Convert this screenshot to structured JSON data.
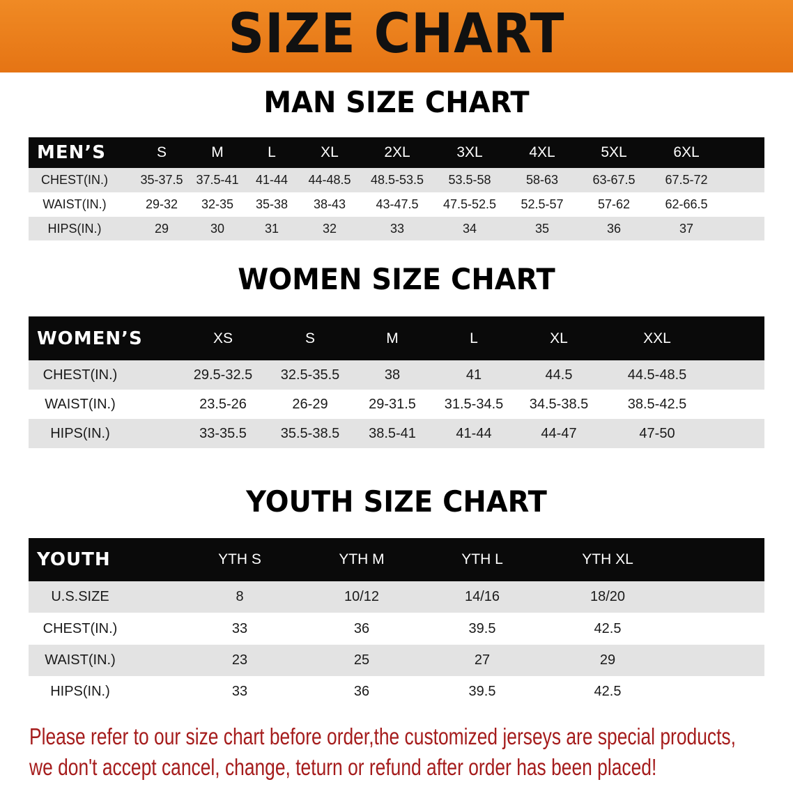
{
  "banner": {
    "title": "SIZE CHART",
    "color": "#ec7f1c"
  },
  "men": {
    "title": "MAN SIZE CHART",
    "headers": [
      "MEN’S",
      "S",
      "M",
      "L",
      "XL",
      "2XL",
      "3XL",
      "4XL",
      "5XL",
      "6XL"
    ],
    "rows": [
      [
        "CHEST(IN.)",
        "35-37.5",
        "37.5-41",
        "41-44",
        "44-48.5",
        "48.5-53.5",
        "53.5-58",
        "58-63",
        "63-67.5",
        "67.5-72"
      ],
      [
        "WAIST(IN.)",
        "29-32",
        "32-35",
        "35-38",
        "38-43",
        "43-47.5",
        "47.5-52.5",
        "52.5-57",
        "57-62",
        "62-66.5"
      ],
      [
        "HIPS(IN.)",
        "29",
        "30",
        "31",
        "32",
        "33",
        "34",
        "35",
        "36",
        "37"
      ]
    ]
  },
  "women": {
    "title": "WOMEN SIZE CHART",
    "headers": [
      "WOMEN’S",
      "XS",
      "S",
      "M",
      "L",
      "XL",
      "XXL"
    ],
    "rows": [
      [
        "CHEST(IN.)",
        "29.5-32.5",
        "32.5-35.5",
        "38",
        "41",
        "44.5",
        "44.5-48.5"
      ],
      [
        "WAIST(IN.)",
        "23.5-26",
        "26-29",
        "29-31.5",
        "31.5-34.5",
        "34.5-38.5",
        "38.5-42.5"
      ],
      [
        "HIPS(IN.)",
        "33-35.5",
        "35.5-38.5",
        "38.5-41",
        "41-44",
        "44-47",
        "47-50"
      ]
    ]
  },
  "youth": {
    "title": "YOUTH SIZE CHART",
    "headers": [
      "YOUTH",
      "YTH S",
      "YTH M",
      "YTH L",
      "YTH XL"
    ],
    "rows": [
      [
        "U.S.SIZE",
        "8",
        "10/12",
        "14/16",
        "18/20"
      ],
      [
        "CHEST(IN.)",
        "33",
        "36",
        "39.5",
        "42.5"
      ],
      [
        "WAIST(IN.)",
        "23",
        "25",
        "27",
        "29"
      ],
      [
        "HIPS(IN.)",
        "33",
        "36",
        "39.5",
        "42.5"
      ]
    ]
  },
  "notice": {
    "line1": "Please refer to our size chart before order,the customized jerseys are special products,",
    "line2": "we don't accept cancel, change, teturn or refund after order has been placed!",
    "color": "#a51c1c"
  }
}
